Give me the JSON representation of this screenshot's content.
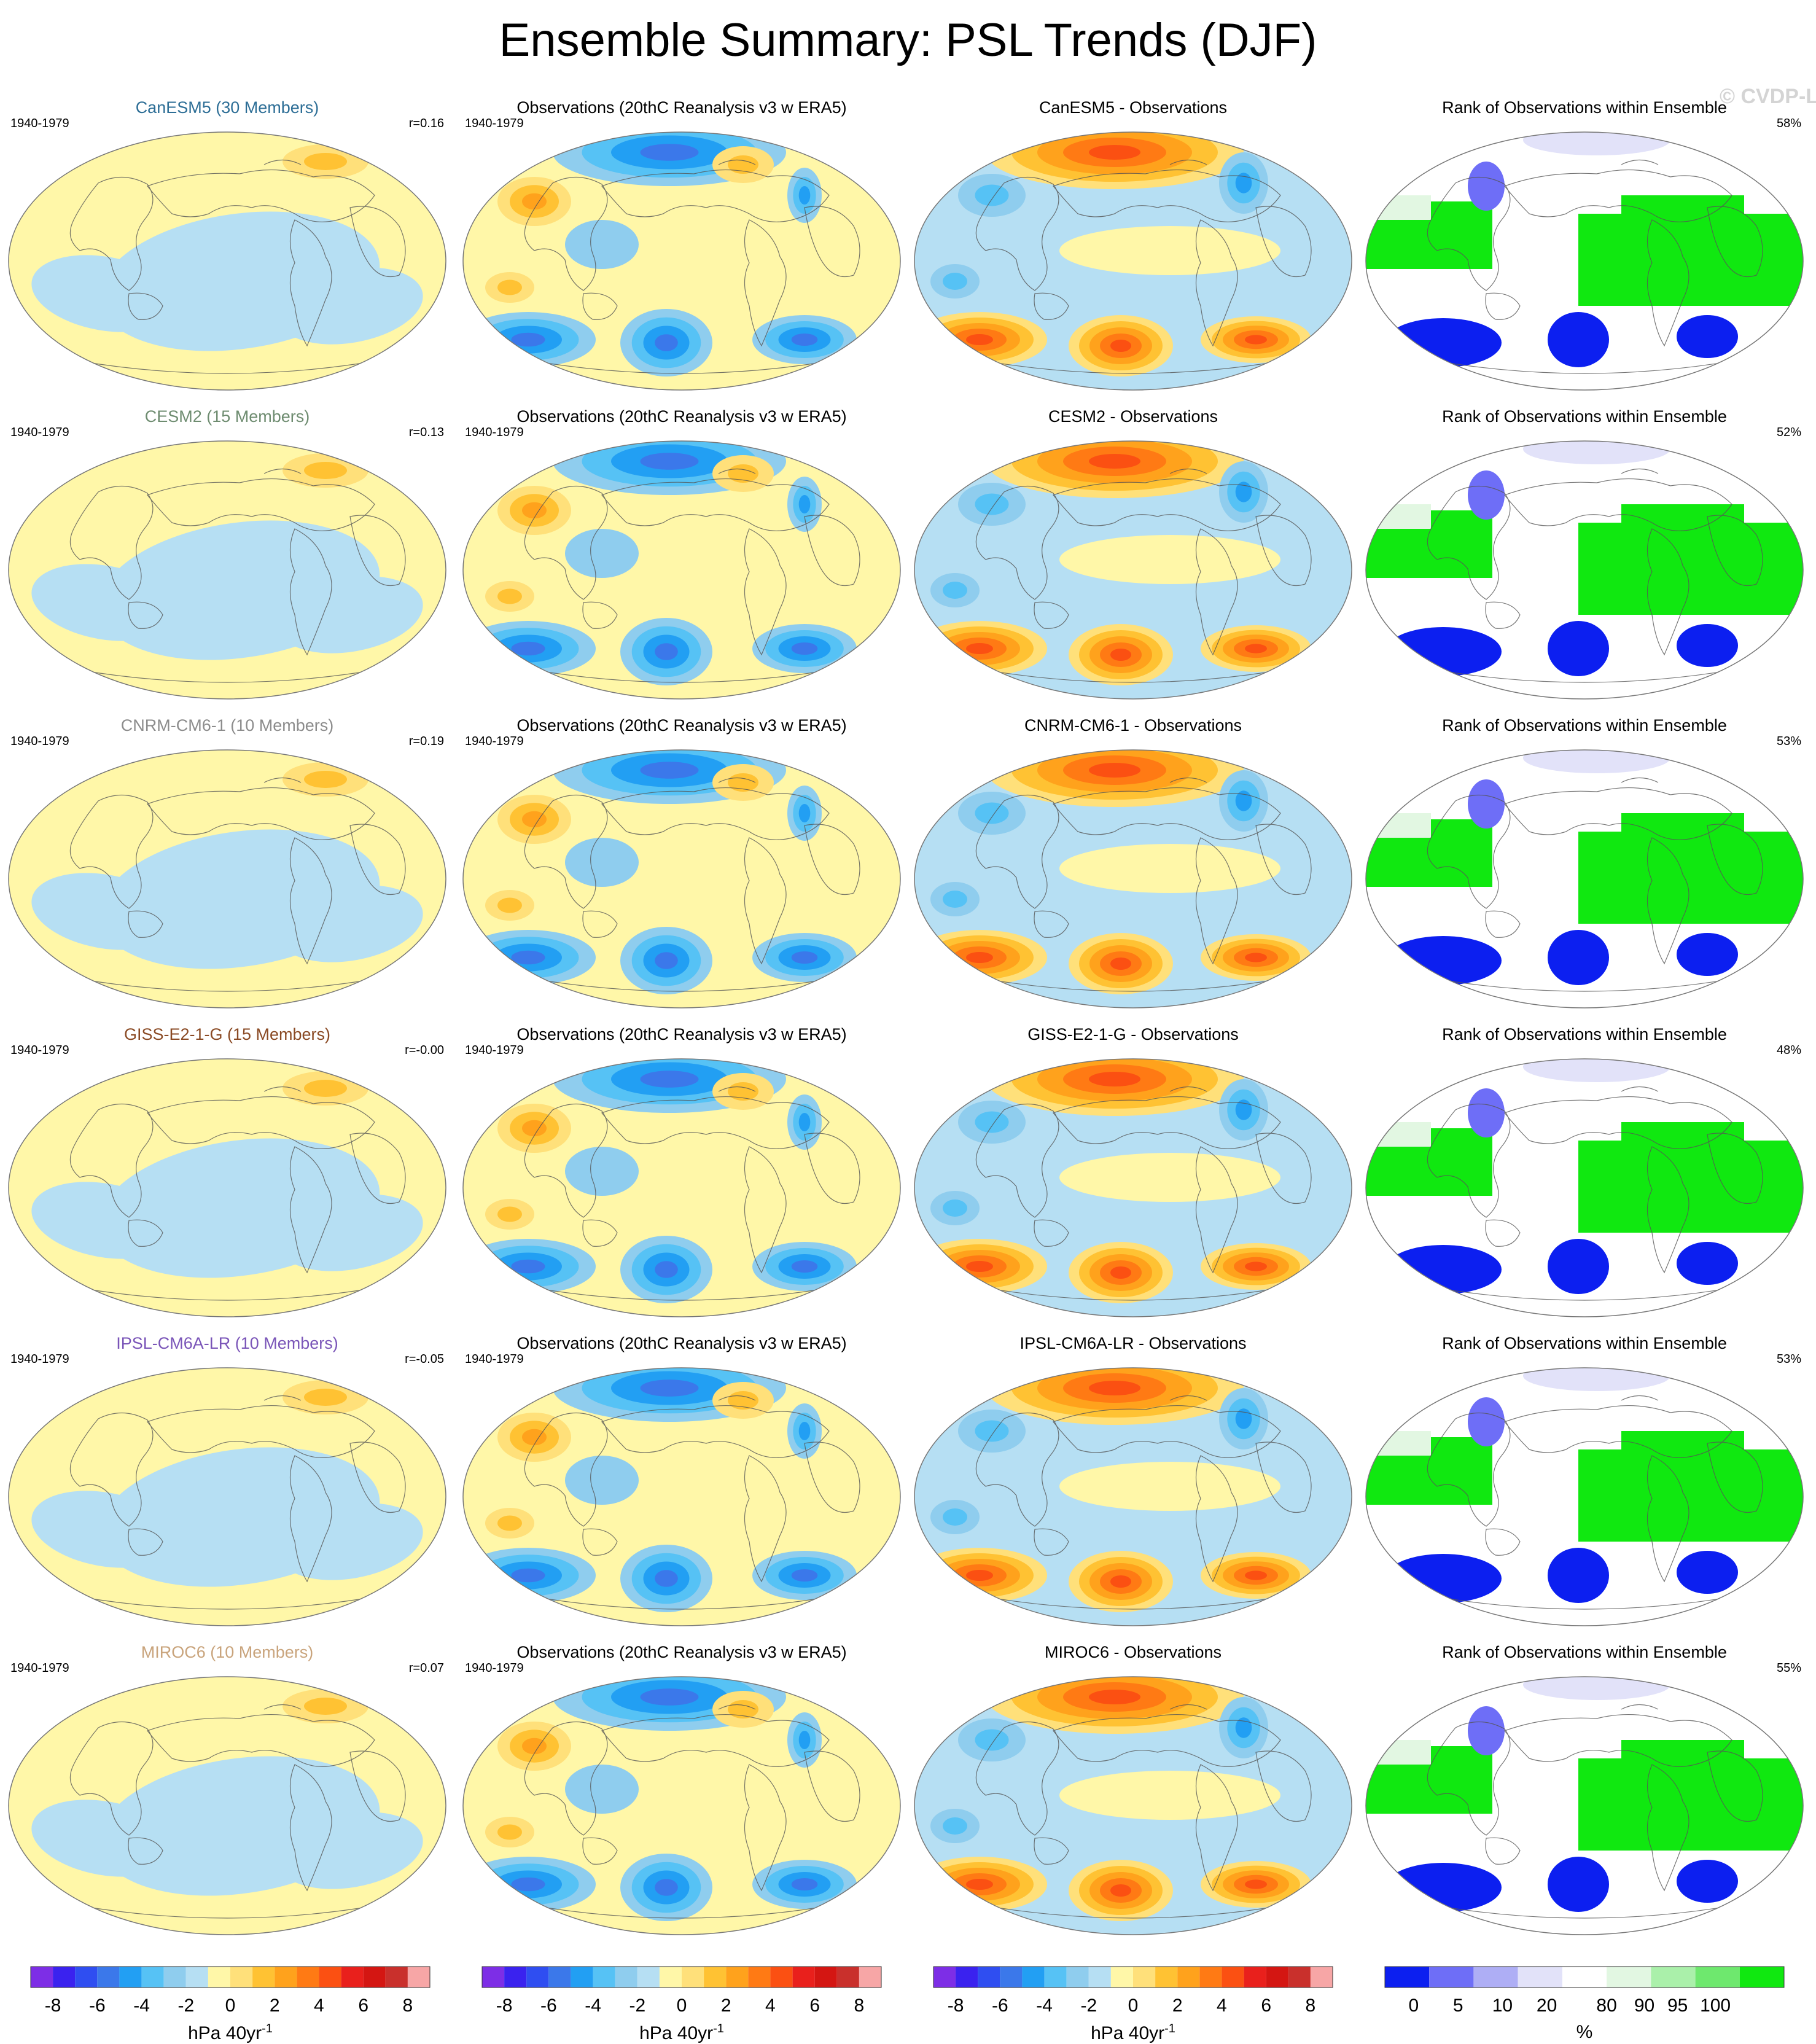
{
  "title": "Ensemble Summary: PSL Trends (DJF)",
  "watermark": "© CVDP-LE",
  "period": "1940-1979",
  "obs_title": "Observations (20thC Reanalysis v3 w ERA5)",
  "rank_title": "Rank of Observations within Ensemble",
  "rows": [
    {
      "model": "CanESM5 (30 Members)",
      "model_color": "#2d6e96",
      "r": "r=0.16",
      "diff_title": "CanESM5 - Observations",
      "rank_pct": "58%"
    },
    {
      "model": "CESM2 (15 Members)",
      "model_color": "#6e8c70",
      "r": "r=0.13",
      "diff_title": "CESM2 - Observations",
      "rank_pct": "52%"
    },
    {
      "model": "CNRM-CM6-1 (10 Members)",
      "model_color": "#8c8c8c",
      "r": "r=0.19",
      "diff_title": "CNRM-CM6-1 - Observations",
      "rank_pct": "53%"
    },
    {
      "model": "GISS-E2-1-G (15 Members)",
      "model_color": "#8a4a24",
      "r": "r=-0.00",
      "diff_title": "GISS-E2-1-G - Observations",
      "rank_pct": "48%"
    },
    {
      "model": "IPSL-CM6A-LR (10 Members)",
      "model_color": "#7a55b8",
      "r": "r=-0.05",
      "diff_title": "IPSL-CM6A-LR - Observations",
      "rank_pct": "53%"
    },
    {
      "model": "MIROC6 (10 Members)",
      "model_color": "#c9a47c",
      "r": "r=0.07",
      "diff_title": "MIROC6 - Observations",
      "rank_pct": "55%"
    }
  ],
  "colorbars": {
    "trend": {
      "unit": "hPa 40yr",
      "unit_sup": "-1",
      "labels": [
        "-8",
        "-6",
        "-4",
        "-2",
        "0",
        "2",
        "4",
        "6",
        "8"
      ],
      "colors": [
        "#7d2ee6",
        "#3a22ef",
        "#2f4ef1",
        "#3b78ea",
        "#229ff3",
        "#56c2f5",
        "#8fcdee",
        "#b6dff3",
        "#fff7a8",
        "#ffe07a",
        "#ffc233",
        "#ffa21c",
        "#ff7a14",
        "#fb5012",
        "#e9201c",
        "#d41612",
        "#c9302c",
        "#f7a6a6"
      ]
    },
    "rank": {
      "unit": "%",
      "labels": [
        "0",
        "5",
        "10",
        "20",
        "80",
        "90",
        "95",
        "100"
      ],
      "colors": [
        "#0c1ff0",
        "#6e6ef7",
        "#aeaef5",
        "#e2e2f9",
        "#ffffff",
        "#e2f7e2",
        "#aaf0aa",
        "#6ee86e",
        "#10e810"
      ]
    }
  }
}
